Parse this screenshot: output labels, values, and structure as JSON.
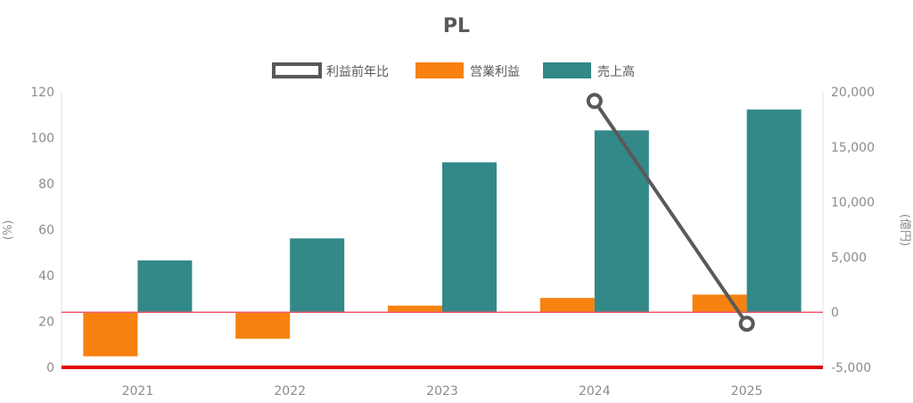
{
  "chart_data": {
    "type": "bar",
    "title": "PL",
    "categories": [
      "2021",
      "2022",
      "2023",
      "2024",
      "2025"
    ],
    "series": [
      {
        "name": "利益前年比",
        "kind": "line",
        "axis": "left",
        "values": [
          null,
          null,
          null,
          116,
          19
        ]
      },
      {
        "name": "営業利益",
        "kind": "bar",
        "axis": "right",
        "values": [
          -4000,
          -2400,
          600,
          1300,
          1600
        ]
      },
      {
        "name": "売上高",
        "kind": "bar",
        "axis": "right",
        "values": [
          4700,
          6700,
          13600,
          16500,
          18400
        ]
      }
    ],
    "y_left": {
      "label": "(%)",
      "range": [
        0,
        120
      ],
      "ticks": [
        "0",
        "20",
        "40",
        "60",
        "80",
        "100",
        "120"
      ]
    },
    "y_right": {
      "label": "(億円)",
      "range": [
        -5000,
        20000
      ],
      "ticks": [
        "-5,000",
        "0",
        "5,000",
        "10,000",
        "15,000",
        "20,000"
      ]
    },
    "legend_position": "top",
    "grid": false,
    "colors": {
      "line": "#595959",
      "operating_profit": "#f7820f",
      "sales": "#338888",
      "zero_line": "#ef5a6a",
      "baseline": "#e00000",
      "axis_text": "#8c8c8c",
      "title": "#595959"
    }
  }
}
